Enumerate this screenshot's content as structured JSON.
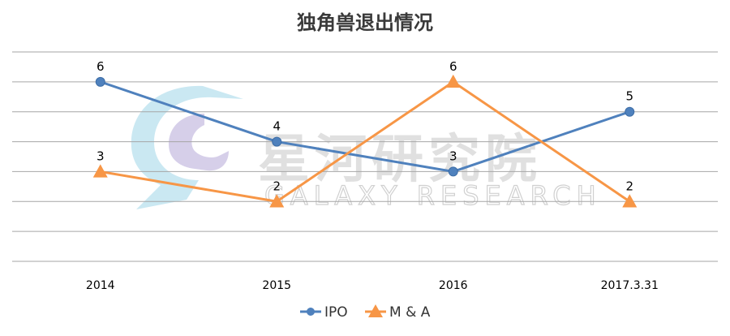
{
  "chart_data": {
    "type": "line",
    "title": "独角兽退出情况",
    "categories": [
      "2014",
      "2015",
      "2016",
      "2017.3.31"
    ],
    "ylim": [
      0,
      7
    ],
    "grid": true,
    "legend_position": "bottom",
    "series": [
      {
        "name": "IPO",
        "values": [
          6,
          4,
          3,
          5
        ],
        "color": "#4f81bd",
        "marker": "circle"
      },
      {
        "name": "M & A",
        "values": [
          3,
          2,
          6,
          2
        ],
        "color": "#f79646",
        "marker": "triangle"
      }
    ]
  },
  "watermark": {
    "main": "星河研究院",
    "sub": "GALAXY RESEARCH",
    "icon": "galaxy-logo"
  }
}
